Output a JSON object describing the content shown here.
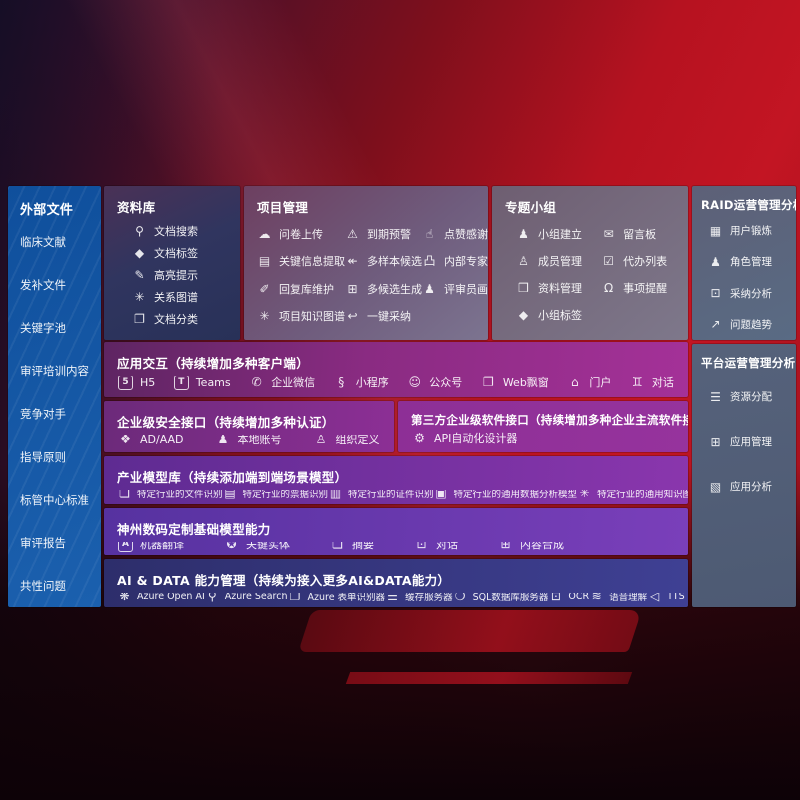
{
  "colors": {
    "background_red": "#b61220",
    "left_sidebar_blue": "#1459a6",
    "library_panel": "#33355f",
    "project_panel": "#6f5a78",
    "groups_panel": "#7a7286",
    "raid_panel": "#5b6a82",
    "interaction_row": "#932d8c",
    "security_row": "#822d90",
    "models_row": "#7531a3",
    "base_models_row": "#6b39b0",
    "ai_data_row": "#37387f"
  },
  "sidebar_left": {
    "title": "外部文件",
    "items": [
      {
        "name": "clinical-literature",
        "label": "临床文献"
      },
      {
        "name": "supplement-files",
        "label": "发补文件"
      },
      {
        "name": "keyword-pool",
        "label": "关键字池"
      },
      {
        "name": "review-training-content",
        "label": "审评培训内容"
      },
      {
        "name": "competitors",
        "label": "竞争对手"
      },
      {
        "name": "guidelines",
        "label": "指导原则"
      },
      {
        "name": "standards-center",
        "label": "标管中心标准"
      },
      {
        "name": "review-reports",
        "label": "审评报告"
      },
      {
        "name": "common-issues",
        "label": "共性问题"
      }
    ]
  },
  "library": {
    "title": "资料库",
    "items": [
      {
        "name": "doc-search",
        "icon": "⚲",
        "icon_name": "doc-search-icon",
        "label": "文档搜索"
      },
      {
        "name": "doc-tags",
        "icon": "◆",
        "icon_name": "tag-icon",
        "label": "文档标签"
      },
      {
        "name": "highlight-hints",
        "icon": "✎",
        "icon_name": "pen-icon",
        "label": "高亮提示"
      },
      {
        "name": "relation-graph",
        "icon": "✳",
        "icon_name": "graph-icon",
        "label": "关系图谱"
      },
      {
        "name": "doc-classification",
        "icon": "❐",
        "icon_name": "docs-icon",
        "label": "文档分类"
      }
    ]
  },
  "project": {
    "title": "项目管理",
    "items": [
      {
        "name": "questionnaire-upload",
        "icon": "☁",
        "icon_name": "cloud-upload-icon",
        "label": "问卷上传"
      },
      {
        "name": "expiry-warning",
        "icon": "⚠",
        "icon_name": "alarm-icon",
        "label": "到期预警"
      },
      {
        "name": "like-thanks",
        "icon": "☝",
        "icon_name": "thumbs-up-icon",
        "label": "点赞感谢"
      },
      {
        "name": "key-info-extraction",
        "icon": "▤",
        "icon_name": "document-icon",
        "label": "关键信息提取"
      },
      {
        "name": "multi-sample-candidates",
        "icon": "↞",
        "icon_name": "reply-arrows-icon",
        "label": "多样本候选"
      },
      {
        "name": "internal-expert-ranking",
        "icon": "凸",
        "icon_name": "podium-icon",
        "label": "内部专家排名"
      },
      {
        "name": "reply-library-maintenance",
        "icon": "✐",
        "icon_name": "edit-pen-icon",
        "label": "回复库维护"
      },
      {
        "name": "multi-candidate-generation",
        "icon": "⊞",
        "icon_name": "puzzle-icon",
        "label": "多候选生成"
      },
      {
        "name": "reviewer-profile",
        "icon": "♟",
        "icon_name": "person-icon",
        "label": "评审员画像"
      },
      {
        "name": "project-knowledge-graph",
        "icon": "✳",
        "icon_name": "knowledge-graph-icon",
        "label": "项目知识图谱"
      },
      {
        "name": "one-click-adopt",
        "icon": "↩",
        "icon_name": "adopt-arrow-icon",
        "label": "一键采纳"
      }
    ]
  },
  "groups": {
    "title": "专题小组",
    "items": [
      {
        "name": "group-creation",
        "icon": "♟",
        "icon_name": "people-icon",
        "label": "小组建立"
      },
      {
        "name": "message-board",
        "icon": "✉",
        "icon_name": "bbs-bubble-icon",
        "label": "留言板"
      },
      {
        "name": "member-management",
        "icon": "♙",
        "icon_name": "person-add-icon",
        "label": "成员管理"
      },
      {
        "name": "todo-list",
        "icon": "☑",
        "icon_name": "clipboard-icon",
        "label": "代办列表"
      },
      {
        "name": "material-management",
        "icon": "❒",
        "icon_name": "notebook-icon",
        "label": "资料管理"
      },
      {
        "name": "event-reminder",
        "icon": "Ω",
        "icon_name": "bell-icon",
        "label": "事项提醒"
      },
      {
        "name": "group-tags",
        "icon": "◆",
        "icon_name": "tag-icon",
        "label": "小组标签"
      }
    ]
  },
  "raid": {
    "title": "RAID运营管理分析",
    "items": [
      {
        "name": "user-training",
        "icon": "▦",
        "icon_name": "id-card-icon",
        "label": "用户锻炼"
      },
      {
        "name": "role-management",
        "icon": "♟",
        "icon_name": "people-icon",
        "label": "角色管理"
      },
      {
        "name": "adoption-analysis",
        "icon": "⊡",
        "icon_name": "qa-chat-icon",
        "label": "采纳分析"
      },
      {
        "name": "issue-trends",
        "icon": "↗",
        "icon_name": "trend-chart-icon",
        "label": "问题趋势"
      }
    ]
  },
  "platform": {
    "title": "平台运营管理分析",
    "items": [
      {
        "name": "resource-allocation",
        "icon": "☰",
        "icon_name": "list-icon",
        "label": "资源分配"
      },
      {
        "name": "app-management",
        "icon": "⊞",
        "icon_name": "grid-icon",
        "label": "应用管理"
      },
      {
        "name": "app-analytics",
        "icon": "▧",
        "icon_name": "analytics-icon",
        "label": "应用分析"
      }
    ]
  },
  "interaction": {
    "title": "应用交互（持续增加多种客户端）",
    "items": [
      {
        "name": "h5",
        "icon": "5",
        "boxed": true,
        "icon_name": "h5-logo-icon",
        "label": "H5"
      },
      {
        "name": "teams",
        "icon": "T",
        "boxed": true,
        "icon_name": "teams-logo-icon",
        "label": "Teams"
      },
      {
        "name": "wecom",
        "icon": "✆",
        "icon_name": "wecom-bubble-icon",
        "label": "企业微信"
      },
      {
        "name": "mini-program",
        "icon": "§",
        "icon_name": "mini-program-icon",
        "label": "小程序"
      },
      {
        "name": "official-account",
        "icon": "☺",
        "icon_name": "official-account-icon",
        "label": "公众号"
      },
      {
        "name": "web-popup",
        "icon": "❐",
        "icon_name": "web-window-icon",
        "label": "Web飘窗"
      },
      {
        "name": "portal",
        "icon": "⌂",
        "icon_name": "portal-icon",
        "label": "门户"
      },
      {
        "name": "dialog",
        "icon": "♊",
        "icon_name": "dialog-people-icon",
        "label": "对话"
      }
    ]
  },
  "security": {
    "title": "企业级安全接口（持续增加多种认证）",
    "items": [
      {
        "name": "ad-aad",
        "icon": "❖",
        "icon_name": "shield-icon",
        "label": "AD/AAD"
      },
      {
        "name": "local-account",
        "icon": "♟",
        "icon_name": "account-icon",
        "label": "本地账号"
      },
      {
        "name": "org-definition",
        "icon": "♙",
        "icon_name": "org-people-icon",
        "label": "组织定义"
      }
    ]
  },
  "thirdparty": {
    "title": "第三方企业级软件接口（持续增加多种企业主流软件接口）",
    "items": [
      {
        "name": "api-auto-designer",
        "icon": "⚙",
        "icon_name": "gear-icon",
        "label": "API自动化设计器"
      }
    ]
  },
  "models": {
    "title": "产业模型库（持续添加端到端场景模型）",
    "items": [
      {
        "name": "industry-file-recognition",
        "icon": "❏",
        "icon_name": "file-icon",
        "label": "特定行业的文件识别"
      },
      {
        "name": "industry-invoice-recognition",
        "icon": "▤",
        "icon_name": "invoice-icon",
        "label": "特定行业的票据识别"
      },
      {
        "name": "industry-id-recognition",
        "icon": "▥",
        "icon_name": "id-card-icon",
        "label": "特定行业的证件识别"
      },
      {
        "name": "industry-general-data-analysis-model",
        "icon": "▣",
        "icon_name": "data-chart-icon",
        "label": "特定行业的通用数据分析模型"
      },
      {
        "name": "industry-general-knowledge-graph-model",
        "icon": "✳",
        "icon_name": "knowledge-graph-icon",
        "label": "特定行业的通用知识图谱模型"
      }
    ]
  },
  "base_models": {
    "title": "神州数码定制基础模型能力",
    "items": [
      {
        "name": "machine-translation",
        "icon": "A",
        "boxed": true,
        "icon_name": "translate-icon",
        "label": "机器翻译"
      },
      {
        "name": "key-entities",
        "icon": "✪",
        "icon_name": "entity-shield-icon",
        "label": "关键实体"
      },
      {
        "name": "summarization",
        "icon": "❏",
        "icon_name": "summary-doc-icon",
        "label": "摘要"
      },
      {
        "name": "dialogue",
        "icon": "⊡",
        "icon_name": "chat-bubble-icon",
        "label": "对话"
      },
      {
        "name": "content-synthesis",
        "icon": "⊞",
        "icon_name": "compose-icon",
        "label": "内容合成"
      }
    ]
  },
  "ai_data": {
    "title": "AI & DATA 能力管理（持续为接入更多AI&DATA能力）",
    "items": [
      {
        "name": "azure-openai",
        "icon": "❋",
        "icon_name": "openai-knot-icon",
        "label": "Azure Open AI"
      },
      {
        "name": "azure-search",
        "icon": "⚲",
        "icon_name": "search-icon",
        "label": "Azure Search"
      },
      {
        "name": "azure-form-recognizer",
        "icon": "❐",
        "icon_name": "form-scan-icon",
        "label": "Azure 表单识别器"
      },
      {
        "name": "cache-server",
        "icon": "☰",
        "icon_name": "server-stack-icon",
        "label": "缓存服务器"
      },
      {
        "name": "sql-db-server",
        "icon": "❍",
        "icon_name": "database-icon",
        "label": "SQL数据库服务器"
      },
      {
        "name": "ocr",
        "icon": "⊡",
        "icon_name": "ocr-frame-icon",
        "label": "OCR"
      },
      {
        "name": "speech-understanding",
        "icon": "≋",
        "icon_name": "voice-wave-icon",
        "label": "语音理解"
      },
      {
        "name": "tts",
        "icon": "◁",
        "icon_name": "speaker-icon",
        "label": "TTS"
      }
    ]
  }
}
